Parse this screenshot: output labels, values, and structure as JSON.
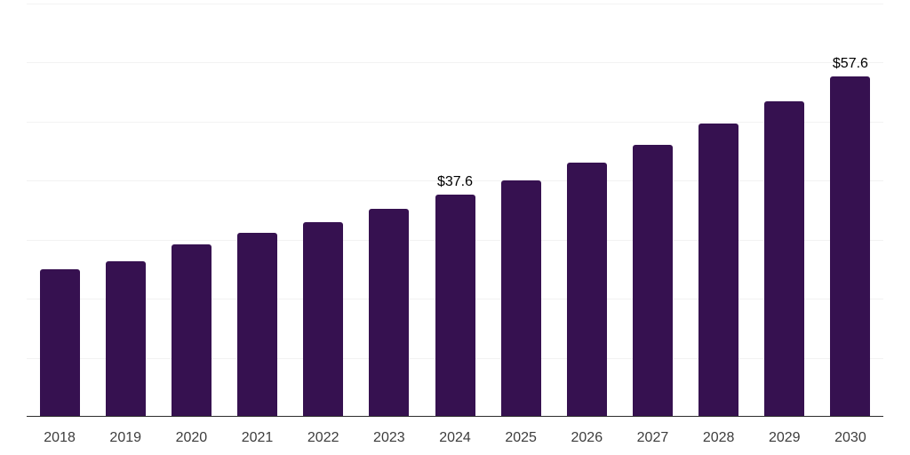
{
  "chart_data": {
    "type": "bar",
    "title": "",
    "xlabel": "",
    "ylabel": "",
    "categories": [
      "2018",
      "2019",
      "2020",
      "2021",
      "2022",
      "2023",
      "2024",
      "2025",
      "2026",
      "2027",
      "2028",
      "2029",
      "2030"
    ],
    "values": [
      25.0,
      26.4,
      29.2,
      31.1,
      33.0,
      35.2,
      37.6,
      40.1,
      43.0,
      46.1,
      49.7,
      53.4,
      57.6
    ],
    "data_labels": [
      "",
      "",
      "",
      "",
      "",
      "",
      "$37.6",
      "",
      "",
      "",
      "",
      "",
      "$57.6"
    ],
    "ylim": [
      0,
      70
    ],
    "gridline_step": 10,
    "grid_on": true,
    "legend": "none",
    "colors": {
      "bar": "#361150",
      "gridline": "#f2f2f2",
      "axis_line": "#2f2f2f",
      "tick_label": "#3d3d3d",
      "data_label": "#000000",
      "background": "#ffffff"
    }
  }
}
